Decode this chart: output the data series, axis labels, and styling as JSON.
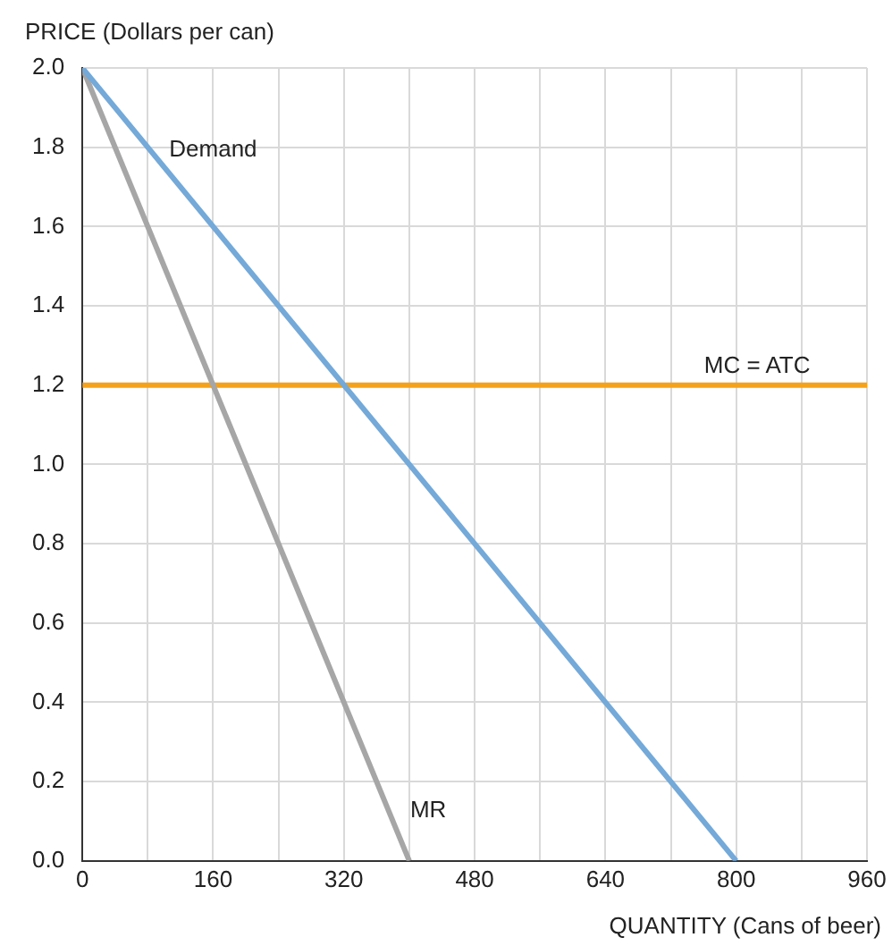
{
  "chart_data": {
    "type": "line",
    "xlabel": "QUANTITY (Cans of beer)",
    "ylabel": "PRICE (Dollars per can)",
    "xlim": [
      0,
      960
    ],
    "ylim": [
      0,
      2
    ],
    "xticks": [
      0,
      {
        "value": 80,
        "label": null
      },
      160,
      {
        "value": 240,
        "label": null
      },
      320,
      {
        "value": 400,
        "label": null
      },
      480,
      {
        "value": 560,
        "label": null
      },
      640,
      {
        "value": 720,
        "label": null
      },
      800,
      {
        "value": 880,
        "label": null
      },
      960
    ],
    "yticks": [
      {
        "value": 0,
        "label": "0.0"
      },
      {
        "value": 0.2,
        "label": "0.2"
      },
      {
        "value": 0.4,
        "label": "0.4"
      },
      {
        "value": 0.6,
        "label": "0.6"
      },
      {
        "value": 0.8,
        "label": "0.8"
      },
      {
        "value": 1,
        "label": "1.0"
      },
      {
        "value": 1.2,
        "label": "1.2"
      },
      {
        "value": 1.4,
        "label": "1.4"
      },
      {
        "value": 1.6,
        "label": "1.6"
      },
      {
        "value": 1.8,
        "label": "1.8"
      },
      {
        "value": 2,
        "label": "2.0"
      }
    ],
    "grid": true,
    "legend": false,
    "marker": "none",
    "series": [
      {
        "name": "Demand",
        "color": "#74a9d8",
        "x": [
          0,
          800
        ],
        "values": [
          2,
          0
        ]
      },
      {
        "name": "MR",
        "color": "#a6a6a6",
        "x": [
          0,
          400
        ],
        "values": [
          2,
          0
        ]
      },
      {
        "name": "MC = ATC",
        "color": "#f5a21b",
        "x": [
          0,
          960
        ],
        "values": [
          1.2,
          1.2
        ]
      }
    ]
  }
}
